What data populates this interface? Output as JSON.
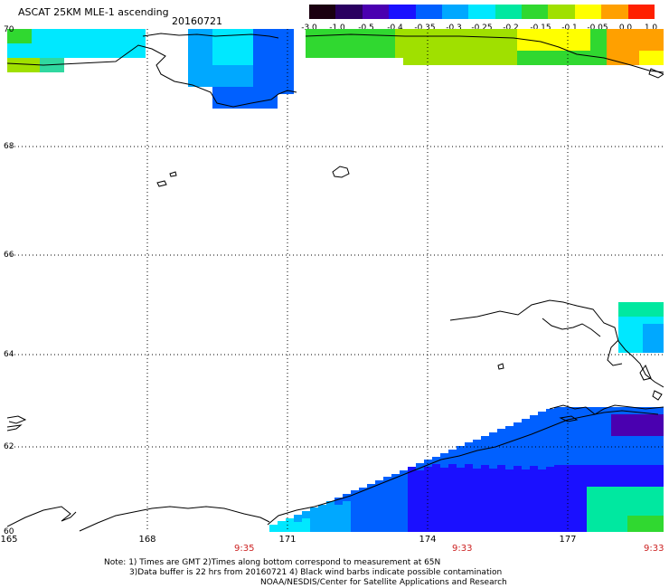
{
  "header": {
    "title": "ASCAT 25KM MLE-1 ascending",
    "date": "20160721"
  },
  "colorbar": {
    "labels": [
      "-3.0",
      "-1.0",
      "-0.5",
      "-0.4",
      "-0.35",
      "-0.3",
      "-0.25",
      "-0.2",
      "-0.15",
      "-0.1",
      "-0.05",
      "0.0",
      "1.0"
    ],
    "colors": [
      "#1a0010",
      "#2a0060",
      "#4a00b0",
      "#1a10ff",
      "#0060ff",
      "#00a8ff",
      "#00e8ff",
      "#00e8a0",
      "#30d830",
      "#a0e000",
      "#ffff00",
      "#ffa000",
      "#ff2000"
    ]
  },
  "axes": {
    "lat_labels": [
      "70",
      "68",
      "66",
      "64",
      "62",
      "60"
    ],
    "lon_labels": [
      "165",
      "168",
      "171",
      "174",
      "177"
    ]
  },
  "times": [
    "9:35",
    "9:33",
    "9:33"
  ],
  "notes": {
    "line1": "Note: 1) Times are GMT 2)Times along bottom correspond to measurement at 65N",
    "line2": "3)Data buffer is 22 hrs from 20160721 4) Black wind barbs indicate possible contamination",
    "line3": "NOAA/NESDIS/Center for Satellite Applications and Research"
  }
}
